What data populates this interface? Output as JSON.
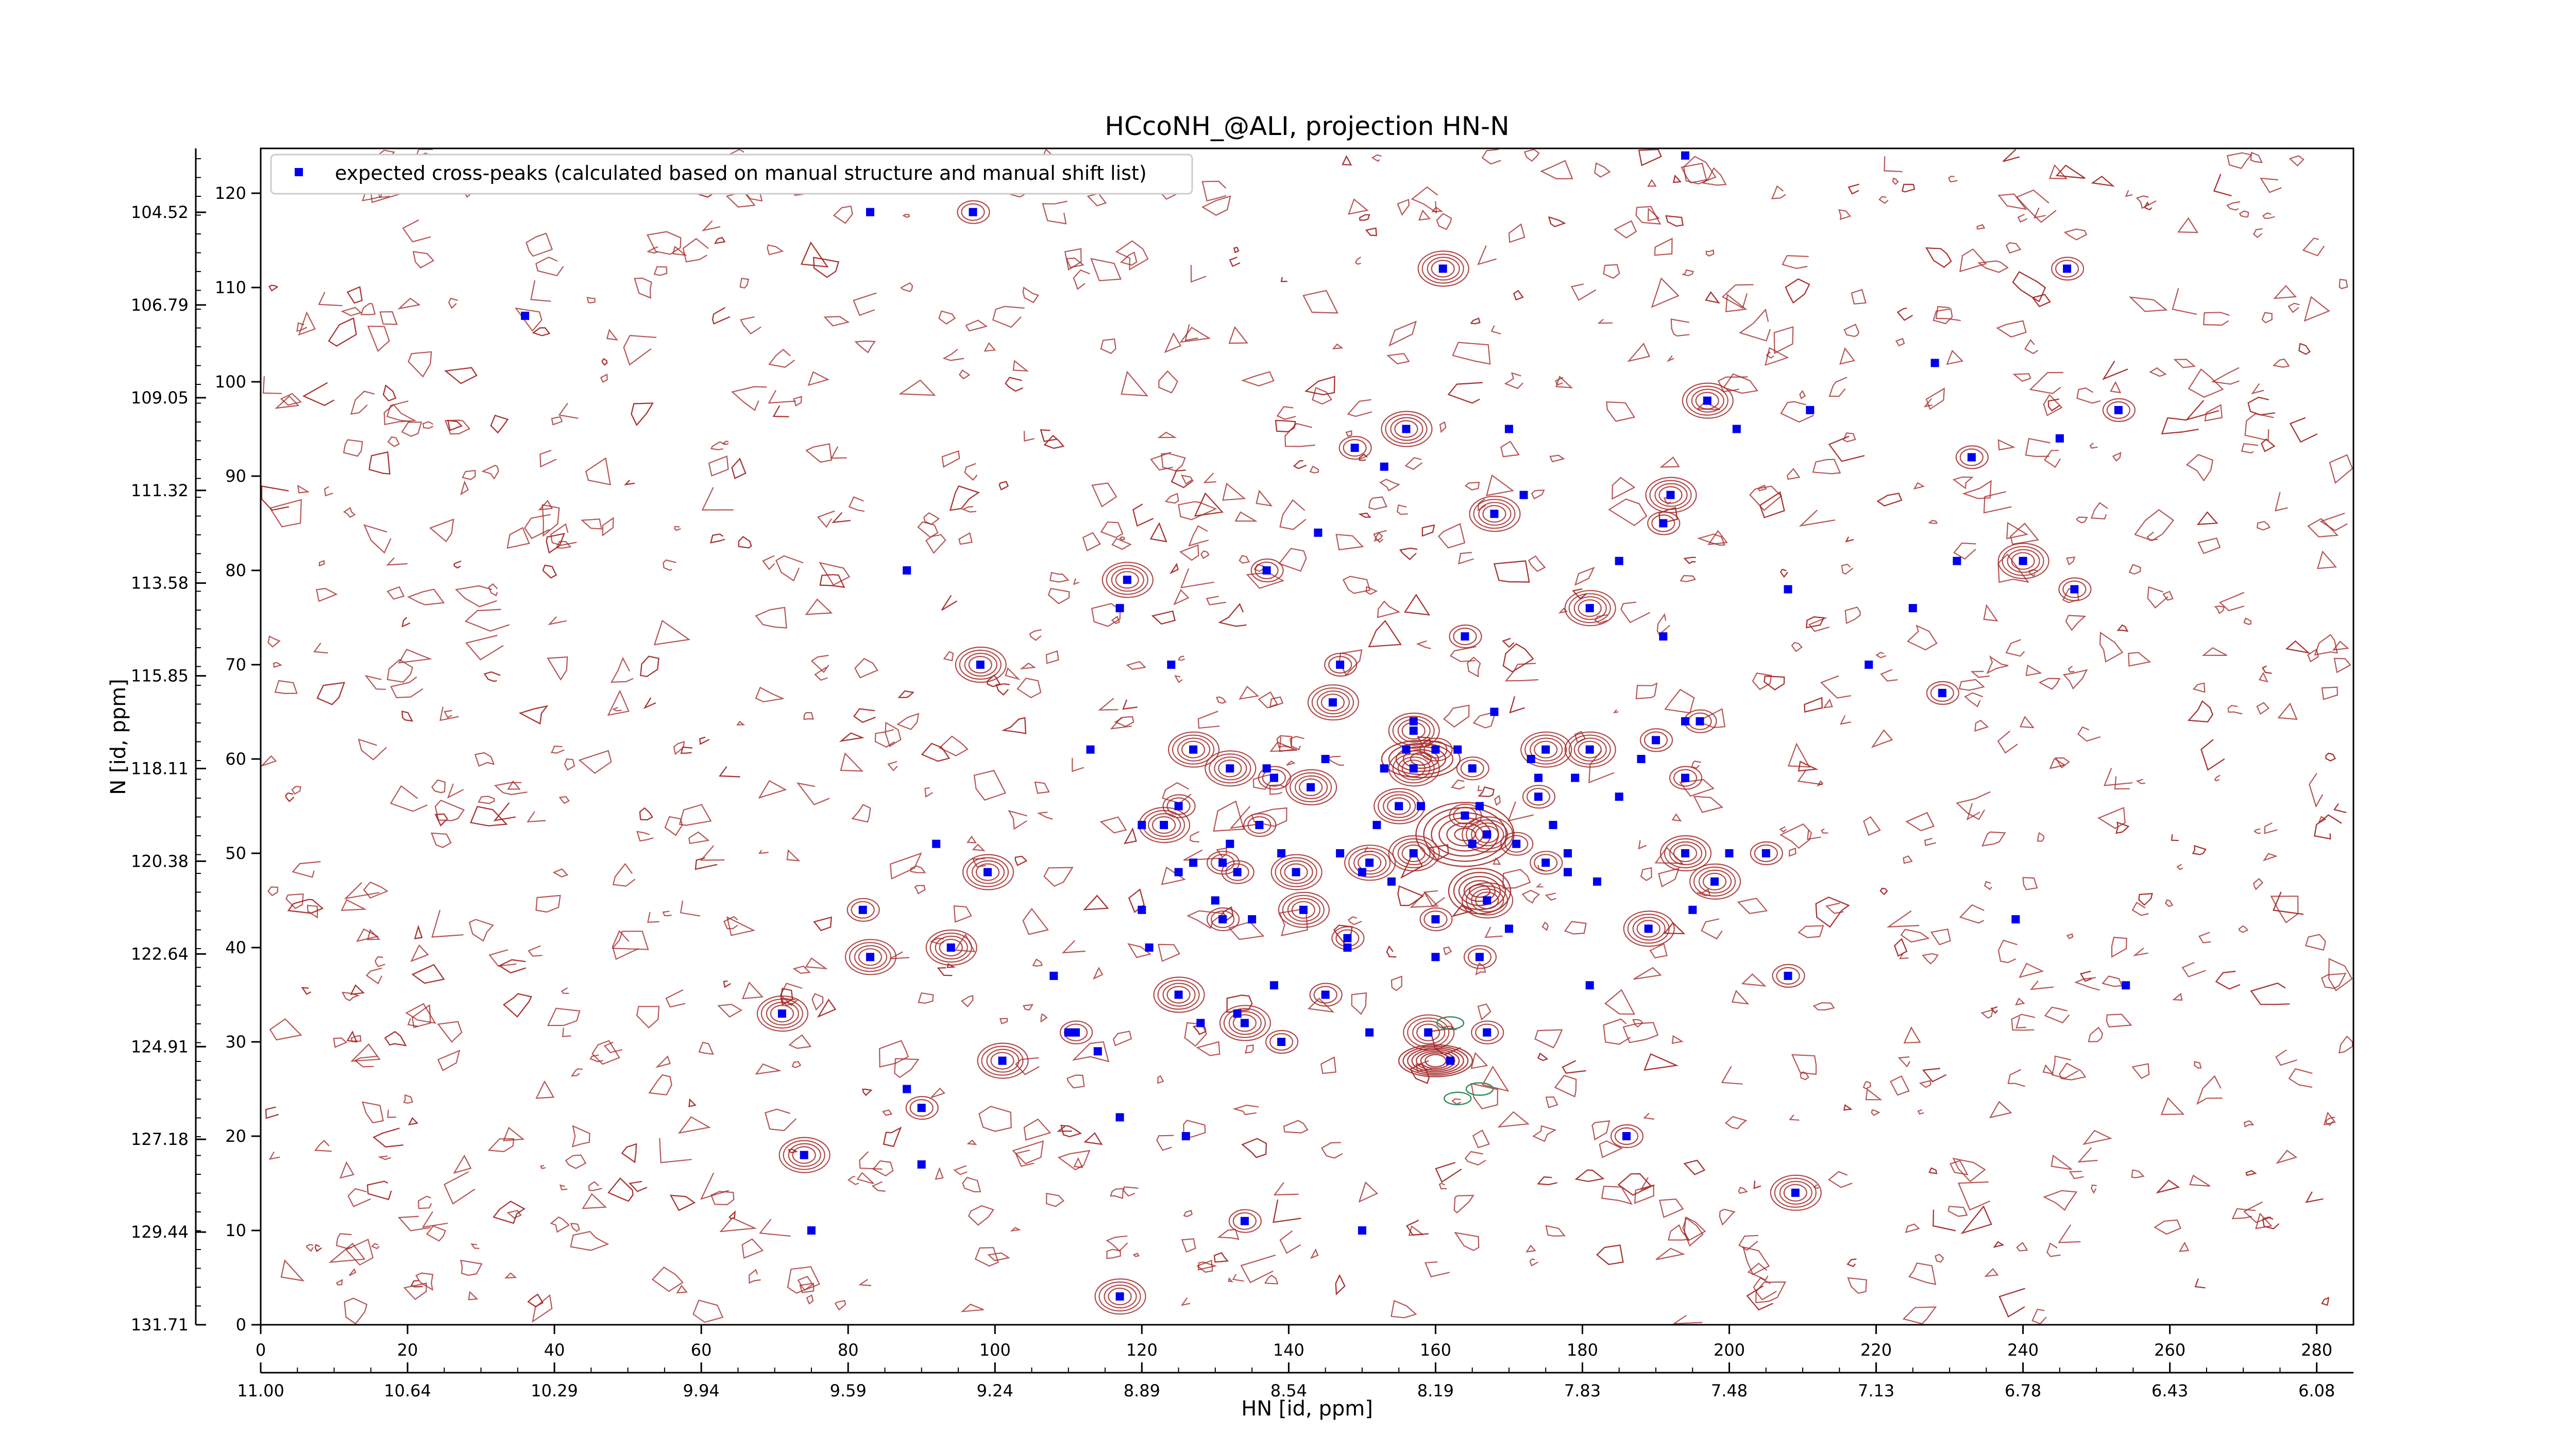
{
  "chart_data": {
    "type": "scatter",
    "title": "HCcoNH_@ALI, projection HN-N",
    "xlabel": "HN [id, ppm]",
    "ylabel": "N [id, ppm]",
    "x_index_range": [
      0,
      285
    ],
    "y_index_range": [
      0,
      126
    ],
    "x_index_ticks": [
      "0",
      "20",
      "40",
      "60",
      "80",
      "100",
      "120",
      "140",
      "160",
      "180",
      "200",
      "220",
      "240",
      "260",
      "280"
    ],
    "y_index_ticks": [
      "0",
      "10",
      "20",
      "30",
      "40",
      "50",
      "60",
      "70",
      "80",
      "90",
      "100",
      "110",
      "120"
    ],
    "x_ppm_ticks": [
      "11.00",
      "10.64",
      "10.29",
      "9.94",
      "9.59",
      "9.24",
      "8.89",
      "8.54",
      "8.19",
      "7.83",
      "7.48",
      "7.13",
      "6.78",
      "6.43",
      "6.08"
    ],
    "y_ppm_ticks": [
      "104.52",
      "106.79",
      "109.05",
      "111.32",
      "113.58",
      "115.85",
      "118.11",
      "120.38",
      "122.64",
      "124.91",
      "127.18",
      "129.44",
      "131.71"
    ],
    "legend": {
      "position": "top-left",
      "label": "expected cross-peaks (calculated based on manual structure and manual shift list)"
    },
    "colors": {
      "marker": "#0000ee",
      "contour": "#a52a2a",
      "negative_contour": "#2e8b57"
    },
    "series": [
      {
        "name": "expected cross-peaks (calculated based on manual structure and manual shift list)",
        "points": [
          [
            97,
            118
          ],
          [
            36,
            107
          ],
          [
            161,
            112
          ],
          [
            194,
            124
          ],
          [
            246,
            112
          ],
          [
            228,
            102
          ],
          [
            197,
            98
          ],
          [
            211,
            97
          ],
          [
            253,
            97
          ],
          [
            201,
            95
          ],
          [
            156,
            95
          ],
          [
            170,
            95
          ],
          [
            149,
            93
          ],
          [
            153,
            91
          ],
          [
            192,
            88
          ],
          [
            245,
            94
          ],
          [
            233,
            92
          ],
          [
            172,
            88
          ],
          [
            168,
            86
          ],
          [
            144,
            84
          ],
          [
            137,
            80
          ],
          [
            88,
            80
          ],
          [
            118,
            79
          ],
          [
            185,
            81
          ],
          [
            191,
            85
          ],
          [
            231,
            81
          ],
          [
            240,
            81
          ],
          [
            208,
            78
          ],
          [
            247,
            78
          ],
          [
            117,
            76
          ],
          [
            181,
            76
          ],
          [
            225,
            76
          ],
          [
            164,
            73
          ],
          [
            191,
            73
          ],
          [
            98,
            70
          ],
          [
            124,
            70
          ],
          [
            147,
            70
          ],
          [
            219,
            70
          ],
          [
            146,
            66
          ],
          [
            168,
            65
          ],
          [
            229,
            67
          ],
          [
            157,
            64
          ],
          [
            157,
            63
          ],
          [
            194,
            64
          ],
          [
            196,
            64
          ],
          [
            113,
            61
          ],
          [
            127,
            61
          ],
          [
            156,
            61
          ],
          [
            160,
            61
          ],
          [
            163,
            61
          ],
          [
            181,
            61
          ],
          [
            188,
            60
          ],
          [
            190,
            62
          ],
          [
            145,
            60
          ],
          [
            132,
            59
          ],
          [
            137,
            59
          ],
          [
            138,
            58
          ],
          [
            153,
            59
          ],
          [
            157,
            59
          ],
          [
            174,
            58
          ],
          [
            165,
            59
          ],
          [
            173,
            60
          ],
          [
            175,
            61
          ],
          [
            179,
            58
          ],
          [
            194,
            58
          ],
          [
            83,
            118
          ],
          [
            143,
            57
          ],
          [
            166,
            55
          ],
          [
            174,
            56
          ],
          [
            185,
            56
          ],
          [
            155,
            55
          ],
          [
            158,
            55
          ],
          [
            125,
            55
          ],
          [
            120,
            53
          ],
          [
            123,
            53
          ],
          [
            152,
            53
          ],
          [
            164,
            54
          ],
          [
            176,
            53
          ],
          [
            167,
            52
          ],
          [
            132,
            51
          ],
          [
            136,
            53
          ],
          [
            147,
            50
          ],
          [
            151,
            49
          ],
          [
            127,
            49
          ],
          [
            131,
            49
          ],
          [
            139,
            50
          ],
          [
            157,
            50
          ],
          [
            165,
            51
          ],
          [
            171,
            51
          ],
          [
            178,
            50
          ],
          [
            194,
            50
          ],
          [
            200,
            50
          ],
          [
            205,
            50
          ],
          [
            92,
            51
          ],
          [
            99,
            48
          ],
          [
            125,
            48
          ],
          [
            133,
            48
          ],
          [
            130,
            45
          ],
          [
            141,
            48
          ],
          [
            150,
            48
          ],
          [
            175,
            49
          ],
          [
            178,
            48
          ],
          [
            167,
            45
          ],
          [
            154,
            47
          ],
          [
            131,
            43
          ],
          [
            135,
            43
          ],
          [
            142,
            44
          ],
          [
            120,
            44
          ],
          [
            160,
            43
          ],
          [
            182,
            47
          ],
          [
            198,
            47
          ],
          [
            195,
            44
          ],
          [
            82,
            44
          ],
          [
            239,
            43
          ],
          [
            189,
            42
          ],
          [
            170,
            42
          ],
          [
            148,
            41
          ],
          [
            148,
            40
          ],
          [
            94,
            40
          ],
          [
            121,
            40
          ],
          [
            166,
            39
          ],
          [
            160,
            39
          ],
          [
            83,
            39
          ],
          [
            108,
            37
          ],
          [
            208,
            37
          ],
          [
            181,
            36
          ],
          [
            125,
            35
          ],
          [
            138,
            36
          ],
          [
            145,
            35
          ],
          [
            254,
            36
          ],
          [
            71,
            33
          ],
          [
            110,
            31
          ],
          [
            111,
            31
          ],
          [
            133,
            33
          ],
          [
            134,
            32
          ],
          [
            128,
            32
          ],
          [
            139,
            30
          ],
          [
            151,
            31
          ],
          [
            159,
            31
          ],
          [
            162,
            28
          ],
          [
            167,
            31
          ],
          [
            114,
            29
          ],
          [
            101,
            28
          ],
          [
            88,
            25
          ],
          [
            90,
            23
          ],
          [
            117,
            22
          ],
          [
            74,
            18
          ],
          [
            126,
            20
          ],
          [
            186,
            20
          ],
          [
            90,
            17
          ],
          [
            209,
            14
          ],
          [
            75,
            10
          ],
          [
            134,
            11
          ],
          [
            150,
            10
          ],
          [
            117,
            3
          ]
        ]
      }
    ]
  }
}
